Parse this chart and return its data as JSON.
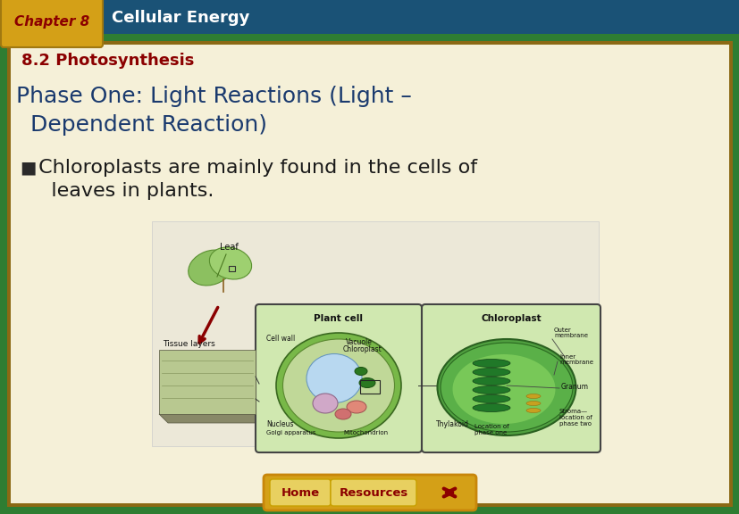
{
  "header_bg_color": "#1a5276",
  "chapter_tab_color": "#d4a017",
  "chapter_tab_text": "Chapter 8",
  "chapter_tab_text_color": "#8b0000",
  "header_title": "Cellular Energy",
  "header_title_color": "#ffffff",
  "outer_border_color": "#2e7d32",
  "inner_border_color": "#8b6914",
  "main_bg_color": "#f5f0d8",
  "subtitle_text": "8.2 Photosynthesis",
  "subtitle_color": "#8b0000",
  "phase_title_line1": "Phase One: Light Reactions (Light –",
  "phase_title_line2": "  Dependent Reaction)",
  "phase_title_color": "#1a3a6e",
  "bullet_char": "■",
  "bullet_text_line1": " Chloroplasts are mainly found in the cells of",
  "bullet_text_line2": "   leaves in plants.",
  "bullet_color": "#1a1a1a",
  "footer_bg_color": "#d4a017",
  "footer_btn1": "Home",
  "footer_btn2": "Resources",
  "footer_btn_color": "#8b0000",
  "footer_btn_bg": "#e8d060",
  "footer_arrow_color": "#8b0000",
  "diagram_bg": "#f5f0d8",
  "diagram_border": "#cccccc"
}
